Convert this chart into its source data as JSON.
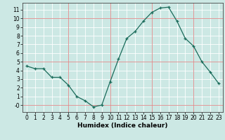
{
  "x": [
    0,
    1,
    2,
    3,
    4,
    5,
    6,
    7,
    8,
    9,
    10,
    11,
    12,
    13,
    14,
    15,
    16,
    17,
    18,
    19,
    20,
    21,
    22,
    23
  ],
  "y": [
    4.5,
    4.2,
    4.2,
    3.2,
    3.2,
    2.3,
    1.0,
    0.5,
    -0.2,
    0.0,
    2.7,
    5.3,
    7.7,
    8.5,
    9.7,
    10.7,
    11.2,
    11.3,
    9.7,
    7.7,
    6.8,
    5.0,
    3.8,
    2.5
  ],
  "title": "",
  "xlabel": "Humidex (Indice chaleur)",
  "ylabel": "",
  "xlim": [
    -0.5,
    23.5
  ],
  "ylim": [
    -0.8,
    11.8
  ],
  "yticks": [
    0,
    1,
    2,
    3,
    4,
    5,
    6,
    7,
    8,
    9,
    10,
    11
  ],
  "ytick_labels": [
    "-0",
    "1",
    "2",
    "3",
    "4",
    "5",
    "6",
    "7",
    "8",
    "9",
    "10",
    "11"
  ],
  "xticks": [
    0,
    1,
    2,
    3,
    4,
    5,
    6,
    7,
    8,
    9,
    10,
    11,
    12,
    13,
    14,
    15,
    16,
    17,
    18,
    19,
    20,
    21,
    22,
    23
  ],
  "line_color": "#1a6b5a",
  "marker": "+",
  "bg_color": "#cce8e4",
  "grid_color": "#ffffff",
  "grid_major_color": "#dd8888",
  "figsize": [
    3.2,
    2.0
  ],
  "dpi": 100,
  "xlabel_fontsize": 6.5,
  "tick_fontsize": 5.5
}
